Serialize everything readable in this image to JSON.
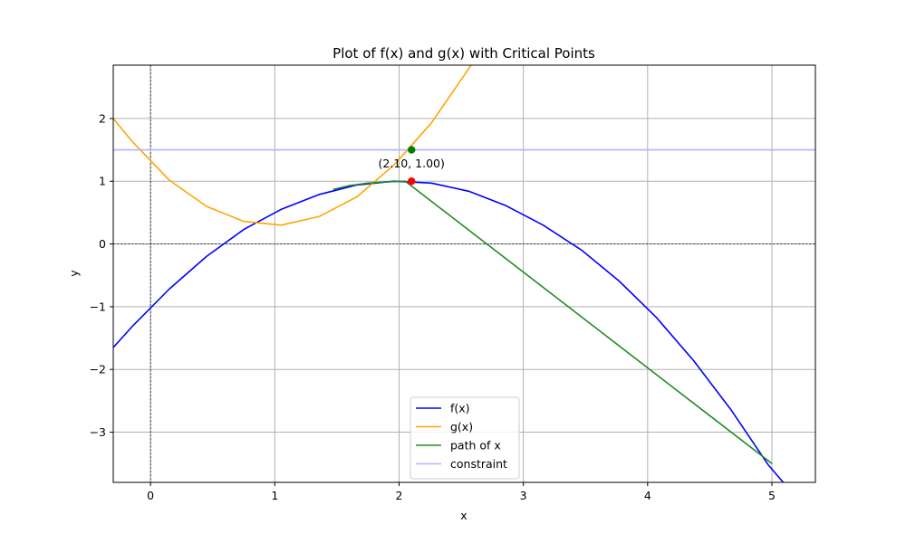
{
  "chart_data": {
    "type": "line",
    "title": "Plot of f(x) and g(x) with Critical Points",
    "xlabel": "x",
    "ylabel": "y",
    "xlim": [
      -0.3,
      5.35
    ],
    "ylim": [
      -3.8,
      2.85
    ],
    "grid": true,
    "legend_position": "lower-center",
    "xticks": [
      0,
      1,
      2,
      3,
      4,
      5
    ],
    "yticks": [
      -3,
      -2,
      -1,
      0,
      1,
      2
    ],
    "xtick_labels": [
      "0",
      "1",
      "2",
      "3",
      "4",
      "5"
    ],
    "ytick_labels": [
      "−3",
      "−2",
      "−1",
      "0",
      "1",
      "2"
    ],
    "reference_lines": {
      "x": 0,
      "y": 0,
      "style": "dashed",
      "color": "#000000"
    },
    "series": [
      {
        "name": "f(x)",
        "color": "#0000ff",
        "x": [
          -0.3,
          -0.15,
          0.15,
          0.45,
          0.75,
          1.05,
          1.36,
          1.66,
          1.96,
          2.26,
          2.56,
          2.86,
          3.16,
          3.47,
          3.77,
          4.07,
          4.37,
          4.67,
          4.97,
          5.1
        ],
        "y": [
          -1.65,
          -1.32,
          -0.72,
          -0.2,
          0.23,
          0.55,
          0.79,
          0.94,
          1.0,
          0.97,
          0.84,
          0.61,
          0.3,
          -0.1,
          -0.59,
          -1.17,
          -1.86,
          -2.64,
          -3.52,
          -3.82
        ]
      },
      {
        "name": "g(x)",
        "color": "#ffa500",
        "x": [
          -0.3,
          -0.15,
          0.15,
          0.45,
          0.75,
          1.05,
          1.36,
          1.66,
          1.96,
          2.26,
          2.58
        ],
        "y": [
          2.0,
          1.64,
          1.02,
          0.6,
          0.36,
          0.3,
          0.44,
          0.75,
          1.26,
          1.93,
          2.85
        ]
      },
      {
        "name": "path of x",
        "color": "#228b22",
        "x": [
          1.47,
          1.6,
          1.75,
          1.9,
          2.05,
          5.0
        ],
        "y": [
          0.87,
          0.93,
          0.97,
          0.99,
          1.0,
          -3.5
        ]
      },
      {
        "name": "constraint",
        "color": "#b3b3ff",
        "x": [
          -0.3,
          5.35
        ],
        "y": [
          1.5,
          1.5
        ]
      }
    ],
    "points": [
      {
        "x": 2.1,
        "y": 1.0,
        "color": "#ff0000"
      },
      {
        "x": 2.1,
        "y": 1.5,
        "color": "#008000"
      }
    ],
    "annotations": [
      {
        "text": "(2.10, 1.00)",
        "x": 2.1,
        "y": 1.0
      }
    ]
  }
}
